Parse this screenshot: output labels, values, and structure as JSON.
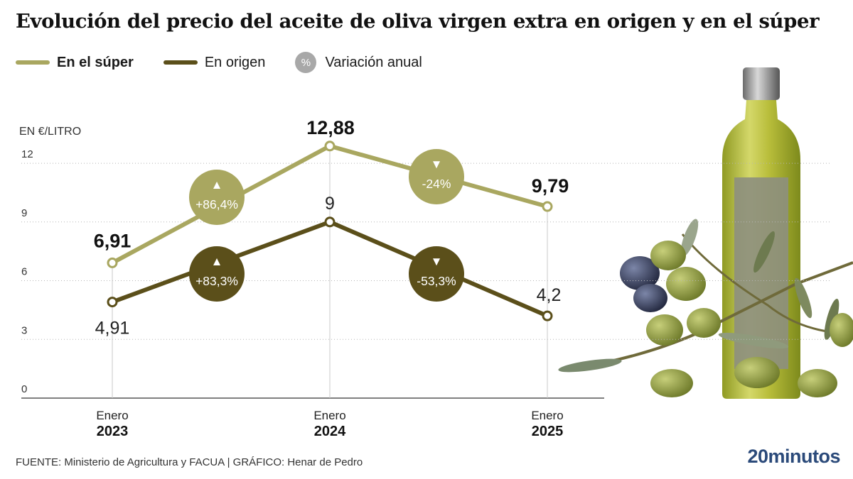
{
  "title": "Evolución del precio del aceite de oliva virgen extra en origen y en el súper",
  "legend": {
    "super_label": "En el súper",
    "origen_label": "En origen",
    "variacion_symbol": "%",
    "variacion_label": "Variación anual"
  },
  "colors": {
    "super": "#a9a760",
    "origen": "#5b4f1a",
    "variacion": "#a8a8a8",
    "axis": "#555555",
    "grid": "#b5b5b5"
  },
  "footer": {
    "source": "FUENTE: Ministerio de Agricultura y FACUA  |  GRÁFICO: Henar de Pedro",
    "logo": "20minutos"
  },
  "images": {
    "decoration": "olive-oil-bottle-and-olive-branch-photo"
  },
  "chart_data": {
    "type": "line",
    "ylabel": "EN €/LITRO",
    "ylim": [
      0,
      13.5
    ],
    "yticks": [
      "0",
      "3",
      "6",
      "9",
      "12"
    ],
    "categories": [
      {
        "top": "Enero",
        "bottom": "2023"
      },
      {
        "top": "Enero",
        "bottom": "2024"
      },
      {
        "top": "Enero",
        "bottom": "2025"
      }
    ],
    "series": [
      {
        "name": "En el súper",
        "values": [
          6.91,
          12.88,
          9.79
        ],
        "labels": [
          "6,91",
          "12,88",
          "9,79"
        ],
        "changes": [
          {
            "symbol": "▲",
            "label": "+86,4%"
          },
          {
            "symbol": "▼",
            "label": "-24%"
          }
        ]
      },
      {
        "name": "En origen",
        "values": [
          4.91,
          9,
          4.2
        ],
        "labels": [
          "4,91",
          "9",
          "4,2"
        ],
        "changes": [
          {
            "symbol": "▲",
            "label": "+83,3%"
          },
          {
            "symbol": "▼",
            "label": "-53,3%"
          }
        ]
      }
    ]
  }
}
